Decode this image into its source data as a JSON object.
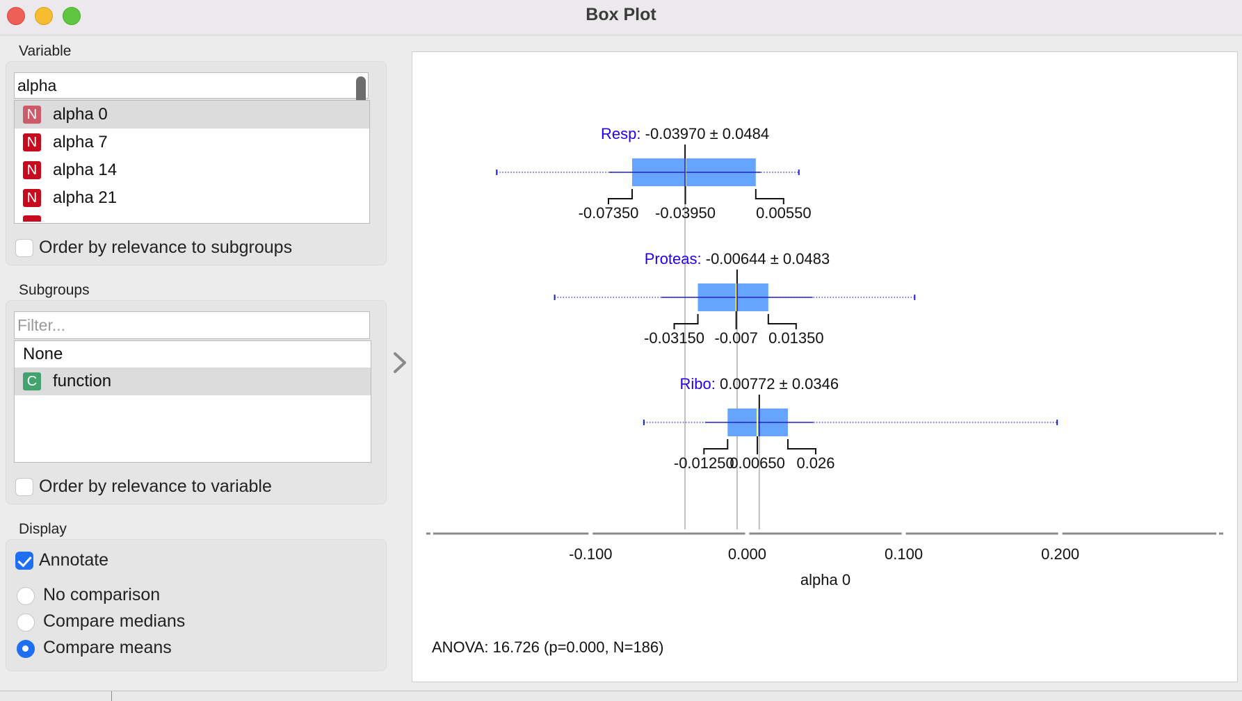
{
  "window": {
    "title": "Box Plot"
  },
  "variable": {
    "label": "Variable",
    "search_value": "alpha",
    "items": [
      {
        "badge": "N",
        "label": "alpha 0",
        "selected": true
      },
      {
        "badge": "N",
        "label": "alpha 7"
      },
      {
        "badge": "N",
        "label": "alpha 14"
      },
      {
        "badge": "N",
        "label": "alpha 21"
      }
    ],
    "order_label": "Order by relevance to subgroups"
  },
  "subgroups": {
    "label": "Subgroups",
    "filter_placeholder": "Filter...",
    "none_label": "None",
    "items": [
      {
        "badge": "C",
        "label": "function",
        "selected": true
      }
    ],
    "order_label": "Order by relevance to variable"
  },
  "display": {
    "label": "Display",
    "annotate_label": "Annotate",
    "annotate_checked": true,
    "options": [
      {
        "label": "No comparison",
        "checked": false
      },
      {
        "label": "Compare medians",
        "checked": false
      },
      {
        "label": "Compare means",
        "checked": true
      }
    ]
  },
  "colors": {
    "box": "#66a5ff",
    "whisker": "#2222cc",
    "group_label": "#2200ee",
    "median": "#ffff66",
    "mean_line": "#bfbfbf"
  },
  "chart_data": {
    "type": "box",
    "xlabel": "alpha 0",
    "xlim": [
      -0.205,
      0.305
    ],
    "ticks": [
      -0.1,
      0.0,
      0.1,
      0.2
    ],
    "tick_labels": [
      "-0.100",
      "0.000",
      "0.100",
      "0.200"
    ],
    "groups": [
      {
        "name": "Resp:",
        "stat_label": "-0.03970 ± 0.0484",
        "mean": -0.0397,
        "min": -0.16,
        "q1": -0.0735,
        "median": -0.0395,
        "q3": 0.0055,
        "max": 0.033,
        "q1_label": "-0.07350",
        "median_label": "-0.03950",
        "q3_label": "0.00550"
      },
      {
        "name": "Proteas:",
        "stat_label": "-0.00644 ± 0.0483",
        "mean": -0.00644,
        "min": -0.123,
        "q1": -0.0315,
        "median": -0.007,
        "q3": 0.0135,
        "max": 0.107,
        "q1_label": "-0.03150",
        "median_label": "-0.007",
        "q3_label": "0.01350"
      },
      {
        "name": "Ribo:",
        "stat_label": "0.00772 ± 0.0346",
        "mean": 0.00772,
        "min": -0.066,
        "q1": -0.0125,
        "median": 0.0065,
        "q3": 0.026,
        "max": 0.198,
        "q1_label": "-0.01250",
        "median_label": "0.00650",
        "q3_label": "0.026"
      }
    ],
    "anova_text": "ANOVA: 16.726 (p=0.000, N=186)"
  }
}
